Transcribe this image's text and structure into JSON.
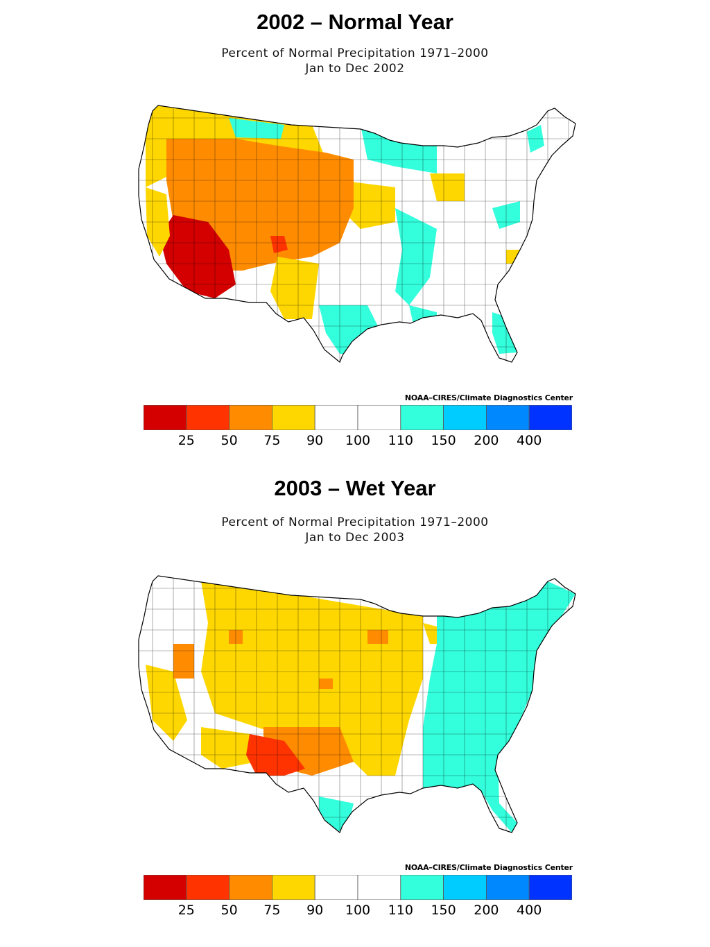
{
  "scale": {
    "colors": [
      "#d40000",
      "#ff3300",
      "#ff8c00",
      "#ffd700",
      "#ffffff",
      "#ffffff",
      "#33ffdd",
      "#00ccff",
      "#0088ff",
      "#0033ff"
    ],
    "ticks": [
      "25",
      "50",
      "75",
      "90",
      "100",
      "110",
      "150",
      "200",
      "400"
    ]
  },
  "panels": [
    {
      "heading": "2002 – Normal Year",
      "subtitle_line1": "Percent of Normal Precipitation 1971–2000",
      "subtitle_line2": "Jan to Dec 2002",
      "credit": "NOAA–CIRES/Climate Diagnostics Center"
    },
    {
      "heading": "2003 – Wet Year",
      "subtitle_line1": "Percent of Normal Precipitation 1971–2000",
      "subtitle_line2": "Jan to Dec 2003",
      "credit": "NOAA–CIRES/Climate Diagnostics Center"
    }
  ]
}
